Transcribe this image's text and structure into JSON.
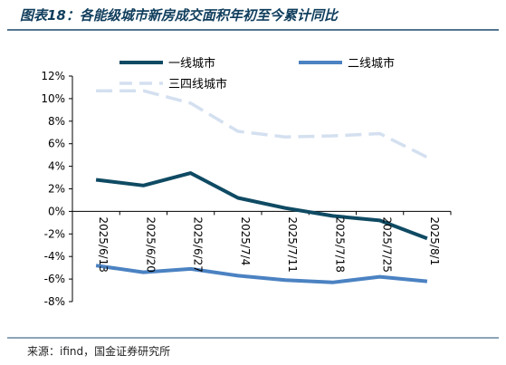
{
  "header": {
    "title": "图表18：各能级城市新房成交面积年初至今累计同比"
  },
  "footer": {
    "source": "来源：ifind，国金证券研究所"
  },
  "chart_data": {
    "type": "line",
    "title": "图表18：各能级城市新房成交面积年初至今累计同比",
    "xlabel": "",
    "ylabel": "",
    "categories": [
      "2025/6/13",
      "2025/6/20",
      "2025/6/27",
      "2025/7/4",
      "2025/7/11",
      "2025/7/18",
      "2025/7/25",
      "2025/8/1"
    ],
    "y_ticks": [
      "12%",
      "10%",
      "8%",
      "6%",
      "4%",
      "2%",
      "0%",
      "-2%",
      "-4%",
      "-6%",
      "-8%"
    ],
    "ylim": [
      -8,
      12
    ],
    "grid": false,
    "legend_position": "top",
    "series": [
      {
        "name": "一线城市",
        "values": [
          2.8,
          2.3,
          3.4,
          1.2,
          0.3,
          -0.4,
          -0.8,
          -2.4
        ],
        "color": "#0f4a63",
        "style": "solid"
      },
      {
        "name": "二线城市",
        "values": [
          -4.8,
          -5.4,
          -5.1,
          -5.7,
          -6.1,
          -6.3,
          -5.8,
          -6.2
        ],
        "color": "#4b82c2",
        "style": "solid"
      },
      {
        "name": "三四线城市",
        "values": [
          10.7,
          10.7,
          9.6,
          7.1,
          6.6,
          6.7,
          6.9,
          4.8
        ],
        "color": "#d4e0f0",
        "style": "dashed"
      }
    ]
  }
}
